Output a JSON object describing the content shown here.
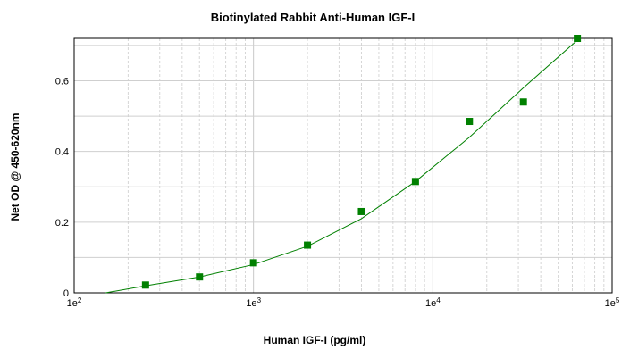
{
  "chart_data": {
    "type": "scatter",
    "title": "Biotinylated Rabbit Anti-Human IGF-I",
    "xlabel": "Human IGF-I (pg/ml)",
    "ylabel": "Net OD @ 450-620nm",
    "x_scale": "log",
    "xlim": [
      100,
      100000
    ],
    "ylim": [
      0,
      0.72
    ],
    "x_ticks": [
      {
        "base": "1e",
        "exp": "2",
        "value": 100
      },
      {
        "base": "1e",
        "exp": "3",
        "value": 1000
      },
      {
        "base": "1e",
        "exp": "4",
        "value": 10000
      },
      {
        "base": "1e",
        "exp": "5",
        "value": 100000
      }
    ],
    "y_ticks": [
      {
        "label": "0",
        "value": 0
      },
      {
        "label": "0.2",
        "value": 0.2
      },
      {
        "label": "0.4",
        "value": 0.4
      },
      {
        "label": "0.6",
        "value": 0.6
      }
    ],
    "grid": true,
    "legend": "none",
    "series": [
      {
        "marker": "square",
        "color": "#008000",
        "x": [
          250,
          500,
          1000,
          2000,
          4000,
          8000,
          16000,
          32000,
          64000
        ],
        "y": [
          0.022,
          0.045,
          0.085,
          0.135,
          0.23,
          0.315,
          0.485,
          0.54,
          0.72
        ]
      }
    ],
    "fit_curve": {
      "color": "#008000",
      "x": [
        150,
        250,
        500,
        1000,
        2000,
        4000,
        8000,
        16000,
        32000,
        64000,
        66000
      ],
      "y": [
        0.0,
        0.02,
        0.045,
        0.08,
        0.132,
        0.21,
        0.315,
        0.44,
        0.58,
        0.715,
        0.72
      ]
    }
  }
}
